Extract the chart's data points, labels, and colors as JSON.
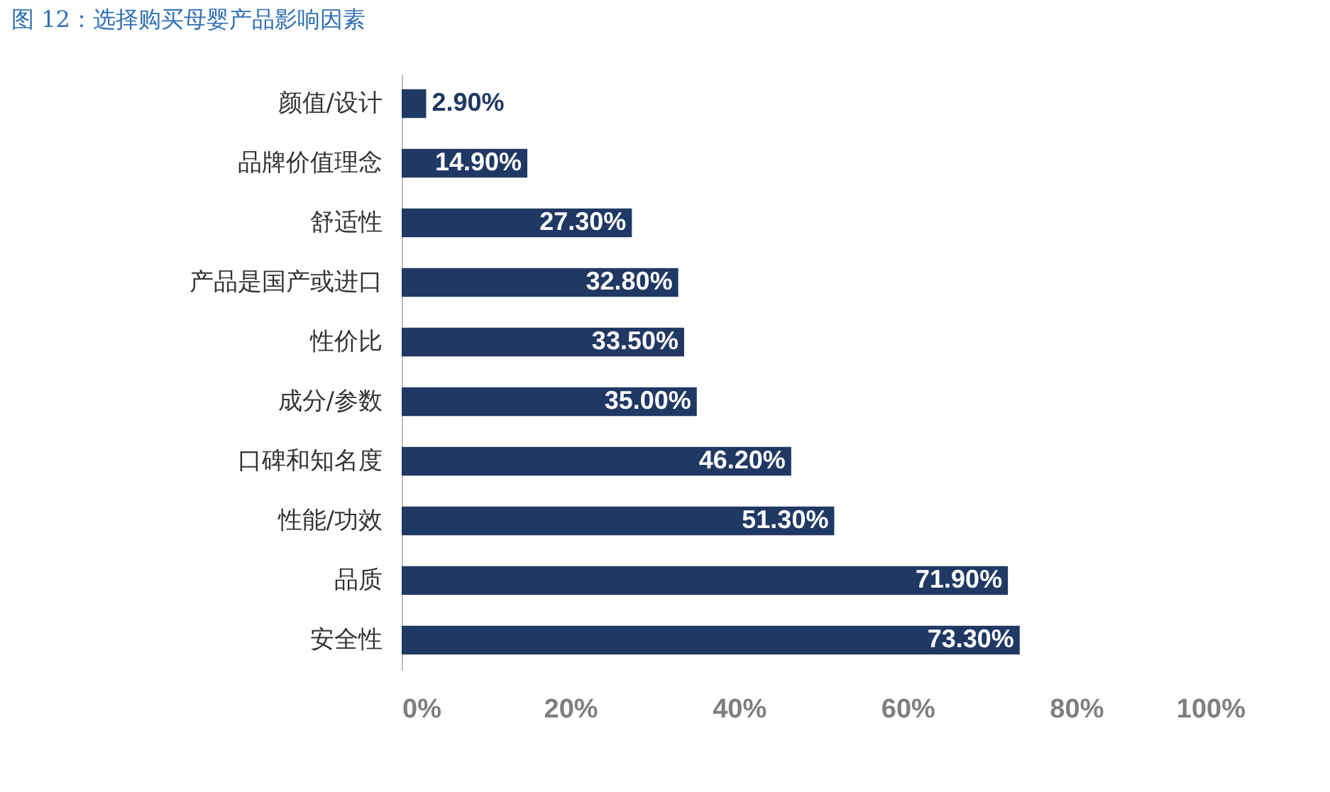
{
  "chart_data": {
    "type": "bar",
    "orientation": "horizontal",
    "title": "图 12：选择购买母婴产品影响因素",
    "categories": [
      "颜值/设计",
      "品牌价值理念",
      "舒适性",
      "产品是国产或进口",
      "性价比",
      "成分/参数",
      "口碑和知名度",
      "性能/功效",
      "品质",
      "安全性"
    ],
    "values": [
      2.9,
      14.9,
      27.3,
      32.8,
      33.5,
      35.0,
      46.2,
      51.3,
      71.9,
      73.3
    ],
    "value_labels": [
      "2.90%",
      "14.90%",
      "27.30%",
      "32.80%",
      "33.50%",
      "35.00%",
      "46.20%",
      "51.30%",
      "71.90%",
      "73.30%"
    ],
    "color": "#203864",
    "xlim": [
      0,
      100
    ],
    "xticks": [
      {
        "value": 0,
        "label": "0%"
      },
      {
        "value": 20,
        "label": "20%"
      },
      {
        "value": 40,
        "label": "40%"
      },
      {
        "value": 60,
        "label": "60%"
      },
      {
        "value": 80,
        "label": "80%"
      },
      {
        "value": 100,
        "label": "100%"
      }
    ],
    "grid": false
  }
}
